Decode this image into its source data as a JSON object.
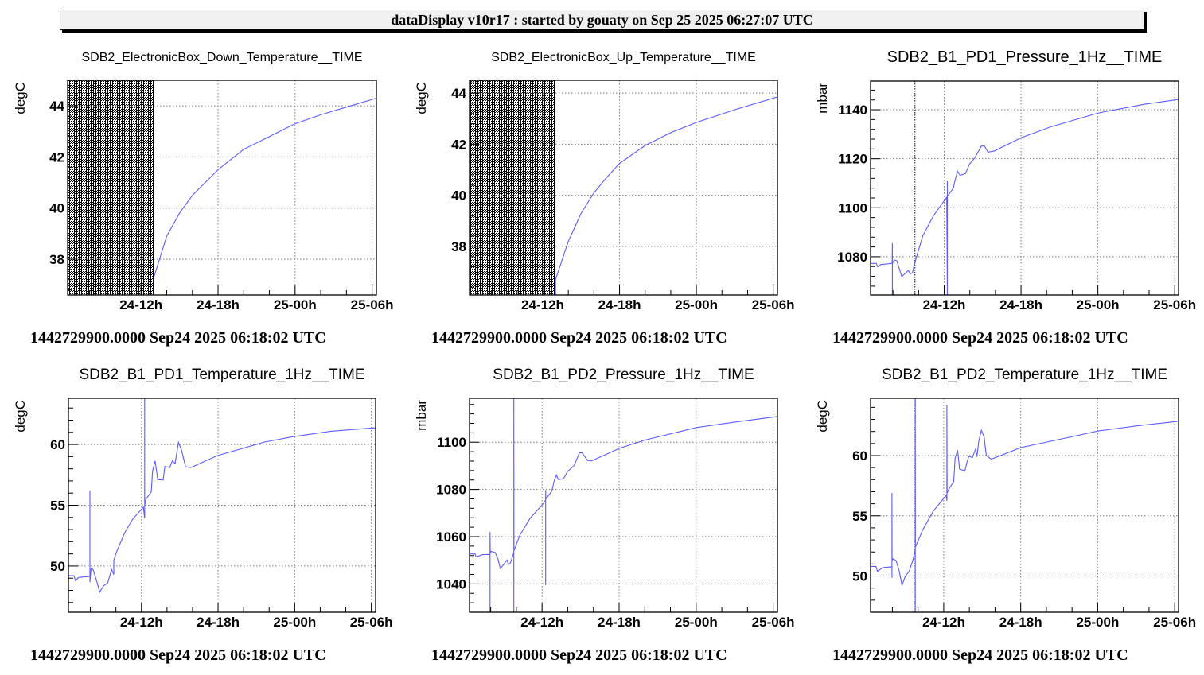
{
  "header": {
    "title": "dataDisplay v10r17 : started by gouaty on Sep 25 2025 06:27:07 UTC"
  },
  "line_color": "#5b5bff",
  "chart_data": [
    {
      "type": "line",
      "title": "SDB2_ElectronicBox_Down_Temperature__TIME",
      "ylabel": "degC",
      "footer": "1442729900.0000 Sep24 2025 06:18:02 UTC",
      "xlim": [
        "2025-09-24 06:17",
        "2025-09-25 06:20"
      ],
      "ylim": [
        36.6,
        45.0
      ],
      "yticks": [
        38,
        40,
        42,
        44
      ],
      "ytick_minor": 0.4,
      "xticks": [
        "2025-09-24 12:00",
        "2025-09-24 18:00",
        "2025-09-25 00:00",
        "2025-09-25 06:00"
      ],
      "xtick_labels": [
        "24-12h",
        "24-18h",
        "25-00h",
        "25-06h"
      ],
      "grid": true,
      "shaded_until": "2025-09-24 13:00",
      "markers": [],
      "points": [
        [
          "2025-09-24 13:00",
          36.6
        ],
        [
          "2025-09-24 13:00",
          37.3
        ],
        [
          "2025-09-24 14:00",
          38.9
        ],
        [
          "2025-09-24 15:00",
          39.8
        ],
        [
          "2025-09-24 16:00",
          40.5
        ],
        [
          "2025-09-24 17:00",
          41.0
        ],
        [
          "2025-09-24 18:00",
          41.5
        ],
        [
          "2025-09-24 19:00",
          41.9
        ],
        [
          "2025-09-24 20:00",
          42.3
        ],
        [
          "2025-09-24 22:00",
          42.8
        ],
        [
          "2025-09-25 00:00",
          43.3
        ],
        [
          "2025-09-25 02:00",
          43.65
        ],
        [
          "2025-09-25 04:00",
          43.95
        ],
        [
          "2025-09-25 06:20",
          44.3
        ]
      ]
    },
    {
      "type": "line",
      "title": "SDB2_ElectronicBox_Up_Temperature__TIME",
      "ylabel": "degC",
      "footer": "1442729900.0000 Sep24 2025 06:18:02 UTC",
      "xlim": [
        "2025-09-24 06:17",
        "2025-09-25 06:20"
      ],
      "ylim": [
        36.1,
        44.5
      ],
      "yticks": [
        38,
        40,
        42,
        44
      ],
      "ytick_minor": 0.4,
      "xticks": [
        "2025-09-24 12:00",
        "2025-09-24 18:00",
        "2025-09-25 00:00",
        "2025-09-25 06:00"
      ],
      "xtick_labels": [
        "24-12h",
        "24-18h",
        "25-00h",
        "25-06h"
      ],
      "grid": true,
      "shaded_until": "2025-09-24 13:00",
      "markers": [],
      "points": [
        [
          "2025-09-24 13:00",
          36.1
        ],
        [
          "2025-09-24 13:00",
          36.7
        ],
        [
          "2025-09-24 14:00",
          38.2
        ],
        [
          "2025-09-24 15:00",
          39.3
        ],
        [
          "2025-09-24 16:00",
          40.1
        ],
        [
          "2025-09-24 17:00",
          40.7
        ],
        [
          "2025-09-24 18:00",
          41.25
        ],
        [
          "2025-09-24 20:00",
          41.95
        ],
        [
          "2025-09-24 22:00",
          42.45
        ],
        [
          "2025-09-25 00:00",
          42.85
        ],
        [
          "2025-09-25 03:00",
          43.35
        ],
        [
          "2025-09-25 06:20",
          43.85
        ]
      ]
    },
    {
      "type": "line",
      "title": "SDB2_B1_PD1_Pressure_1Hz__TIME",
      "ylabel": "mbar",
      "footer": "1442729900.0000 Sep24 2025 06:18:02 UTC",
      "xlim": [
        "2025-09-24 06:15",
        "2025-09-25 06:18"
      ],
      "ylim": [
        1064.4,
        1151.7
      ],
      "yticks": [
        1080,
        1100,
        1120,
        1140
      ],
      "ytick_minor": 4,
      "xticks": [
        "2025-09-24 12:00",
        "2025-09-24 18:00",
        "2025-09-25 00:00",
        "2025-09-25 06:00"
      ],
      "xtick_labels": [
        "24-12h",
        "24-18h",
        "25-00h",
        "25-06h"
      ],
      "grid": true,
      "shaded_until": null,
      "markers": [
        "2025-09-24 09:43"
      ],
      "points": [
        [
          "2025-09-24 06:15",
          1077.3
        ],
        [
          "2025-09-24 06:42",
          1077.3
        ],
        [
          "2025-09-24 06:48",
          1075.9
        ],
        [
          "2025-09-24 07:02",
          1076.8
        ],
        [
          "2025-09-24 07:56",
          1077.3
        ],
        [
          "2025-09-24 07:57",
          1085.6
        ],
        [
          "2025-09-24 07:57",
          1064.4
        ],
        [
          "2025-09-24 07:57",
          1077.3
        ],
        [
          "2025-09-24 08:06",
          1078.7
        ],
        [
          "2025-09-24 08:18",
          1078.4
        ],
        [
          "2025-09-24 08:41",
          1071.9
        ],
        [
          "2025-09-24 09:12",
          1074.4
        ],
        [
          "2025-09-24 09:21",
          1073.0
        ],
        [
          "2025-09-24 09:31",
          1073.5
        ],
        [
          "2025-09-24 09:43",
          1077.8
        ],
        [
          "2025-09-24 10:20",
          1088.6
        ],
        [
          "2025-09-24 11:10",
          1096.8
        ],
        [
          "2025-09-24 12:12",
          1104.3
        ],
        [
          "2025-09-24 12:15",
          1064.4
        ],
        [
          "2025-09-24 12:15",
          1110.8
        ],
        [
          "2025-09-24 12:15",
          1104.6
        ],
        [
          "2025-09-24 12:43",
          1108.1
        ],
        [
          "2025-09-24 12:50",
          1110.8
        ],
        [
          "2025-09-24 13:02",
          1114.9
        ],
        [
          "2025-09-24 13:15",
          1113.2
        ],
        [
          "2025-09-24 13:40",
          1114.0
        ],
        [
          "2025-09-24 13:58",
          1117.8
        ],
        [
          "2025-09-24 14:23",
          1120.3
        ],
        [
          "2025-09-24 14:54",
          1125.2
        ],
        [
          "2025-09-24 15:09",
          1125.2
        ],
        [
          "2025-09-24 15:25",
          1122.7
        ],
        [
          "2025-09-24 15:56",
          1123.2
        ],
        [
          "2025-09-24 18:01",
          1128.6
        ],
        [
          "2025-09-24 20:18",
          1133.0
        ],
        [
          "2025-09-25 00:02",
          1138.7
        ],
        [
          "2025-09-25 03:34",
          1142.2
        ],
        [
          "2025-09-25 06:18",
          1144.2
        ]
      ]
    },
    {
      "type": "line",
      "title": "SDB2_B1_PD1_Temperature_1Hz__TIME",
      "ylabel": "degC",
      "footer": "1442729900.0000 Sep24 2025 06:18:02 UTC",
      "xlim": [
        "2025-09-24 06:17",
        "2025-09-25 06:20"
      ],
      "ylim": [
        46.2,
        63.8
      ],
      "yticks": [
        50,
        55,
        60
      ],
      "ytick_minor": 1,
      "xticks": [
        "2025-09-24 12:00",
        "2025-09-24 18:00",
        "2025-09-25 00:00",
        "2025-09-25 06:00"
      ],
      "xtick_labels": [
        "24-12h",
        "24-18h",
        "25-00h",
        "25-06h"
      ],
      "grid": true,
      "shaded_until": null,
      "markers": [],
      "points": [
        [
          "2025-09-24 06:17",
          49.2
        ],
        [
          "2025-09-24 06:43",
          49.2
        ],
        [
          "2025-09-24 06:50",
          48.8
        ],
        [
          "2025-09-24 07:05",
          49.06
        ],
        [
          "2025-09-24 07:58",
          49.15
        ],
        [
          "2025-09-24 07:58",
          56.2
        ],
        [
          "2025-09-24 07:58",
          48.67
        ],
        [
          "2025-09-24 08:03",
          49.8
        ],
        [
          "2025-09-24 08:13",
          49.7
        ],
        [
          "2025-09-24 08:31",
          48.7
        ],
        [
          "2025-09-24 08:44",
          47.86
        ],
        [
          "2025-09-24 09:02",
          48.37
        ],
        [
          "2025-09-24 09:21",
          48.6
        ],
        [
          "2025-09-24 09:40",
          49.7
        ],
        [
          "2025-09-24 09:50",
          49.3
        ],
        [
          "2025-09-24 09:50",
          50.5
        ],
        [
          "2025-09-24 10:05",
          51.24
        ],
        [
          "2025-09-24 10:42",
          52.77
        ],
        [
          "2025-09-24 11:19",
          53.86
        ],
        [
          "2025-09-24 12:09",
          54.84
        ],
        [
          "2025-09-24 12:15",
          53.9
        ],
        [
          "2025-09-24 12:15",
          63.8
        ],
        [
          "2025-09-24 12:15",
          55.0
        ],
        [
          "2025-09-24 12:21",
          55.5
        ],
        [
          "2025-09-24 12:46",
          56.1
        ],
        [
          "2025-09-24 12:52",
          57.8
        ],
        [
          "2025-09-24 13:04",
          58.65
        ],
        [
          "2025-09-24 13:17",
          57.1
        ],
        [
          "2025-09-24 13:42",
          57.08
        ],
        [
          "2025-09-24 13:50",
          58.2
        ],
        [
          "2025-09-24 14:13",
          58.1
        ],
        [
          "2025-09-24 14:25",
          58.65
        ],
        [
          "2025-09-24 14:38",
          58.43
        ],
        [
          "2025-09-24 14:54",
          60.17
        ],
        [
          "2025-09-24 15:09",
          59.5
        ],
        [
          "2025-09-24 15:27",
          58.17
        ],
        [
          "2025-09-24 15:52",
          58.1
        ],
        [
          "2025-09-24 17:56",
          59.08
        ],
        [
          "2025-09-24 21:39",
          60.2
        ],
        [
          "2025-09-24 23:56",
          60.65
        ],
        [
          "2025-09-25 02:50",
          61.09
        ],
        [
          "2025-09-25 06:18",
          61.37
        ]
      ]
    },
    {
      "type": "line",
      "title": "SDB2_B1_PD2_Pressure_1Hz__TIME",
      "ylabel": "mbar",
      "footer": "1442729900.0000 Sep24 2025 06:18:02 UTC",
      "xlim": [
        "2025-09-24 06:21",
        "2025-09-25 06:20"
      ],
      "ylim": [
        1028.0,
        1118.6
      ],
      "yticks": [
        1040,
        1060,
        1080,
        1100
      ],
      "ytick_minor": 4,
      "xticks": [
        "2025-09-24 12:00",
        "2025-09-24 18:00",
        "2025-09-25 00:00",
        "2025-09-25 06:00"
      ],
      "xtick_labels": [
        "24-12h",
        "24-18h",
        "25-00h",
        "25-06h"
      ],
      "grid": true,
      "shaded_until": null,
      "markers": [],
      "points": [
        [
          "2025-09-24 06:21",
          1052.7
        ],
        [
          "2025-09-24 06:47",
          1052.7
        ],
        [
          "2025-09-24 06:51",
          1051.4
        ],
        [
          "2025-09-24 07:22",
          1052.4
        ],
        [
          "2025-09-24 07:57",
          1052.5
        ],
        [
          "2025-09-24 07:57",
          1028.0
        ],
        [
          "2025-09-24 07:57",
          1062.0
        ],
        [
          "2025-09-24 07:58",
          1053.0
        ],
        [
          "2025-09-24 08:02",
          1053.8
        ],
        [
          "2025-09-24 08:21",
          1053.3
        ],
        [
          "2025-09-24 08:34",
          1050.5
        ],
        [
          "2025-09-24 08:45",
          1046.5
        ],
        [
          "2025-09-24 09:01",
          1048.2
        ],
        [
          "2025-09-24 09:16",
          1050.1
        ],
        [
          "2025-09-24 09:23",
          1048.2
        ],
        [
          "2025-09-24 09:32",
          1048.8
        ],
        [
          "2025-09-24 09:48",
          1053.3
        ],
        [
          "2025-09-24 09:48",
          1028.0
        ],
        [
          "2025-09-24 09:48",
          1118.6
        ],
        [
          "2025-09-24 09:49",
          1054.0
        ],
        [
          "2025-09-24 10:16",
          1060.6
        ],
        [
          "2025-09-24 11:05",
          1067.9
        ],
        [
          "2025-09-24 12:07",
          1074.1
        ],
        [
          "2025-09-24 12:17",
          1075.5
        ],
        [
          "2025-09-24 12:17",
          1039.5
        ],
        [
          "2025-09-24 12:17",
          1079.7
        ],
        [
          "2025-09-24 12:18",
          1076.0
        ],
        [
          "2025-09-24 12:45",
          1079.2
        ],
        [
          "2025-09-24 12:57",
          1083.7
        ],
        [
          "2025-09-24 13:07",
          1086.1
        ],
        [
          "2025-09-24 13:16",
          1084.2
        ],
        [
          "2025-09-24 13:40",
          1084.5
        ],
        [
          "2025-09-24 13:59",
          1087.6
        ],
        [
          "2025-09-24 14:30",
          1090.1
        ],
        [
          "2025-09-24 14:55",
          1095.5
        ],
        [
          "2025-09-24 15:07",
          1095.5
        ],
        [
          "2025-09-24 15:32",
          1092.3
        ],
        [
          "2025-09-24 15:51",
          1092.1
        ],
        [
          "2025-09-24 18:02",
          1097.4
        ],
        [
          "2025-09-24 19:59",
          1100.9
        ],
        [
          "2025-09-25 00:01",
          1106.2
        ],
        [
          "2025-09-25 03:14",
          1108.7
        ],
        [
          "2025-09-25 06:20",
          1110.9
        ]
      ]
    },
    {
      "type": "line",
      "title": "SDB2_B1_PD2_Temperature_1Hz__TIME",
      "ylabel": "degC",
      "footer": "1442729900.0000 Sep24 2025 06:18:02 UTC",
      "xlim": [
        "2025-09-24 06:18",
        "2025-09-25 06:18"
      ],
      "ylim": [
        47.0,
        64.75
      ],
      "yticks": [
        50,
        55,
        60
      ],
      "ytick_minor": 1,
      "xticks": [
        "2025-09-24 12:00",
        "2025-09-24 18:00",
        "2025-09-25 00:00",
        "2025-09-25 06:00"
      ],
      "xtick_labels": [
        "24-12h",
        "24-18h",
        "25-00h",
        "25-06h"
      ],
      "grid": true,
      "shaded_until": null,
      "markers": [
        "2025-09-24 09:46"
      ],
      "points": [
        [
          "2025-09-24 06:18",
          50.8
        ],
        [
          "2025-09-24 06:43",
          50.8
        ],
        [
          "2025-09-24 06:50",
          50.4
        ],
        [
          "2025-09-24 07:15",
          50.7
        ],
        [
          "2025-09-24 07:58",
          50.77
        ],
        [
          "2025-09-24 07:58",
          49.85
        ],
        [
          "2025-09-24 07:58",
          56.9
        ],
        [
          "2025-09-24 07:59",
          51.3
        ],
        [
          "2025-09-24 08:04",
          51.43
        ],
        [
          "2025-09-24 08:17",
          51.28
        ],
        [
          "2025-09-24 08:31",
          50.5
        ],
        [
          "2025-09-24 08:45",
          49.23
        ],
        [
          "2025-09-24 09:00",
          49.96
        ],
        [
          "2025-09-24 09:19",
          50.4
        ],
        [
          "2025-09-24 09:37",
          51.4
        ],
        [
          "2025-09-24 09:47",
          52.27
        ],
        [
          "2025-09-24 09:47",
          47.0
        ],
        [
          "2025-09-24 09:47",
          64.75
        ],
        [
          "2025-09-24 09:48",
          52.4
        ],
        [
          "2025-09-24 10:21",
          53.8
        ],
        [
          "2025-09-24 11:10",
          55.36
        ],
        [
          "2025-09-24 12:12",
          56.7
        ],
        [
          "2025-09-24 12:15",
          56.25
        ],
        [
          "2025-09-24 12:15",
          64.2
        ],
        [
          "2025-09-24 12:16",
          56.9
        ],
        [
          "2025-09-24 12:25",
          57.24
        ],
        [
          "2025-09-24 12:47",
          57.84
        ],
        [
          "2025-09-24 12:53",
          59.78
        ],
        [
          "2025-09-24 13:05",
          60.44
        ],
        [
          "2025-09-24 13:14",
          58.9
        ],
        [
          "2025-09-24 13:39",
          58.72
        ],
        [
          "2025-09-24 13:49",
          59.45
        ],
        [
          "2025-09-24 13:58",
          59.96
        ],
        [
          "2025-09-24 14:14",
          59.82
        ],
        [
          "2025-09-24 14:29",
          60.55
        ],
        [
          "2025-09-24 14:35",
          59.9
        ],
        [
          "2025-09-24 14:44",
          61.2
        ],
        [
          "2025-09-24 14:56",
          62.1
        ],
        [
          "2025-09-24 15:09",
          61.55
        ],
        [
          "2025-09-24 15:19",
          60.0
        ],
        [
          "2025-09-24 15:43",
          59.7
        ],
        [
          "2025-09-24 18:00",
          60.66
        ],
        [
          "2025-09-24 21:56",
          61.55
        ],
        [
          "2025-09-25 00:00",
          62.03
        ],
        [
          "2025-09-25 03:06",
          62.47
        ],
        [
          "2025-09-25 06:12",
          62.83
        ]
      ]
    }
  ]
}
